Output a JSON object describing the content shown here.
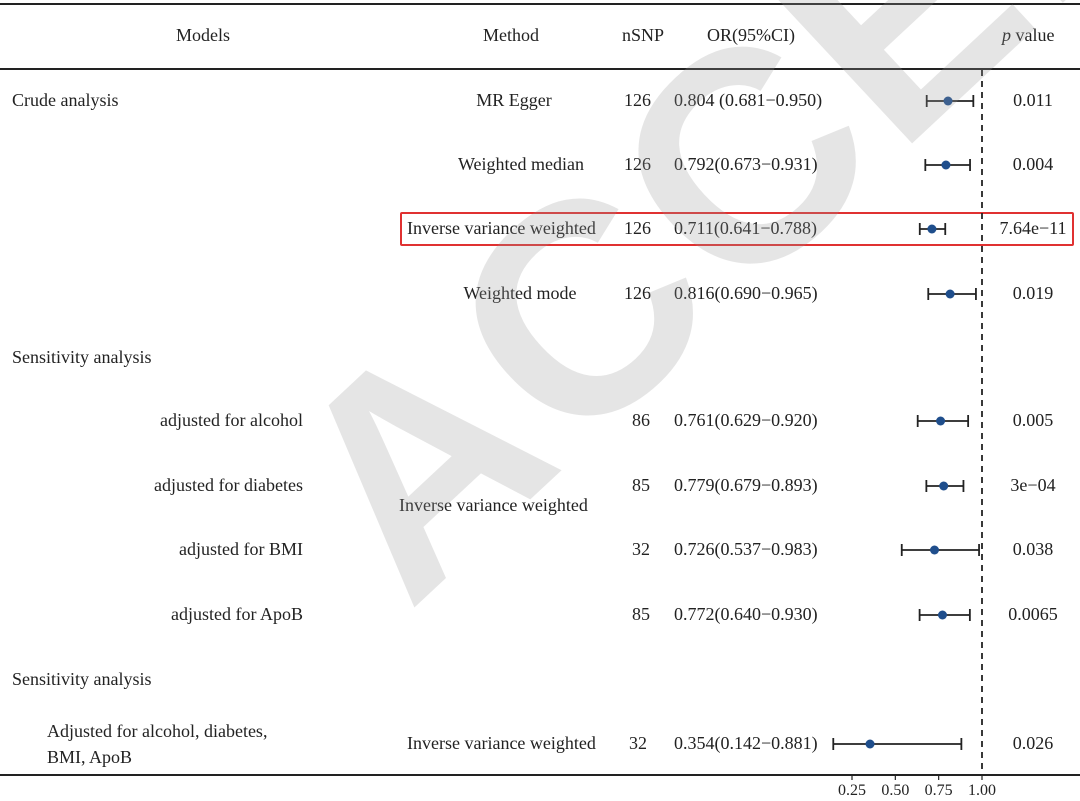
{
  "watermark": "ACCEPTED",
  "headers": {
    "models": "Models",
    "method": "Method",
    "nsnp": "nSNP",
    "or": "OR(95%CI)",
    "p_italic": "p",
    "p_rest": " value"
  },
  "groups": [
    {
      "label": "Crude analysis"
    },
    {
      "label": "Sensitivity analysis"
    },
    {
      "label": "Sensitivity analysis"
    }
  ],
  "subgroups": [
    {
      "label": "adjusted for alcohol"
    },
    {
      "label": "adjusted for diabetes"
    },
    {
      "label": "adjusted for BMI"
    },
    {
      "label": "adjusted for ApoB"
    },
    {
      "label1": "Adjusted for alcohol, diabetes,",
      "label2": "BMI, ApoB"
    }
  ],
  "methods": {
    "m0": "MR Egger",
    "m1": "Weighted median",
    "m2": "Inverse variance weighted",
    "m3": "Weighted mode",
    "sens1": "Inverse variance weighted",
    "m8": "Inverse variance weighted"
  },
  "chart_data": {
    "type": "forest",
    "reference_line": 1.0,
    "axis_ticks": [
      "0.25",
      "0.50",
      "0.75",
      "1.00"
    ],
    "xlim": [
      0.25,
      1.0
    ],
    "highlighted_row": 2,
    "rows": [
      {
        "nsnp": "126",
        "or_text": "0.804 (0.681−0.950)",
        "or": 0.804,
        "lo": 0.681,
        "hi": 0.95,
        "p": "0.011"
      },
      {
        "nsnp": "126",
        "or_text": "0.792(0.673−0.931)",
        "or": 0.792,
        "lo": 0.673,
        "hi": 0.931,
        "p": "0.004"
      },
      {
        "nsnp": "126",
        "or_text": "0.711(0.641−0.788)",
        "or": 0.711,
        "lo": 0.641,
        "hi": 0.788,
        "p": "7.64e−11"
      },
      {
        "nsnp": "126",
        "or_text": "0.816(0.690−0.965)",
        "or": 0.816,
        "lo": 0.69,
        "hi": 0.965,
        "p": "0.019"
      },
      {
        "nsnp": "86",
        "or_text": "0.761(0.629−0.920)",
        "or": 0.761,
        "lo": 0.629,
        "hi": 0.92,
        "p": "0.005"
      },
      {
        "nsnp": "85",
        "or_text": "0.779(0.679−0.893)",
        "or": 0.779,
        "lo": 0.679,
        "hi": 0.893,
        "p": "3e−04"
      },
      {
        "nsnp": "32",
        "or_text": "0.726(0.537−0.983)",
        "or": 0.726,
        "lo": 0.537,
        "hi": 0.983,
        "p": "0.038"
      },
      {
        "nsnp": "85",
        "or_text": "0.772(0.640−0.930)",
        "or": 0.772,
        "lo": 0.64,
        "hi": 0.93,
        "p": "0.0065"
      },
      {
        "nsnp": "32",
        "or_text": "0.354(0.142−0.881)",
        "or": 0.354,
        "lo": 0.142,
        "hi": 0.881,
        "p": "0.026"
      }
    ]
  }
}
